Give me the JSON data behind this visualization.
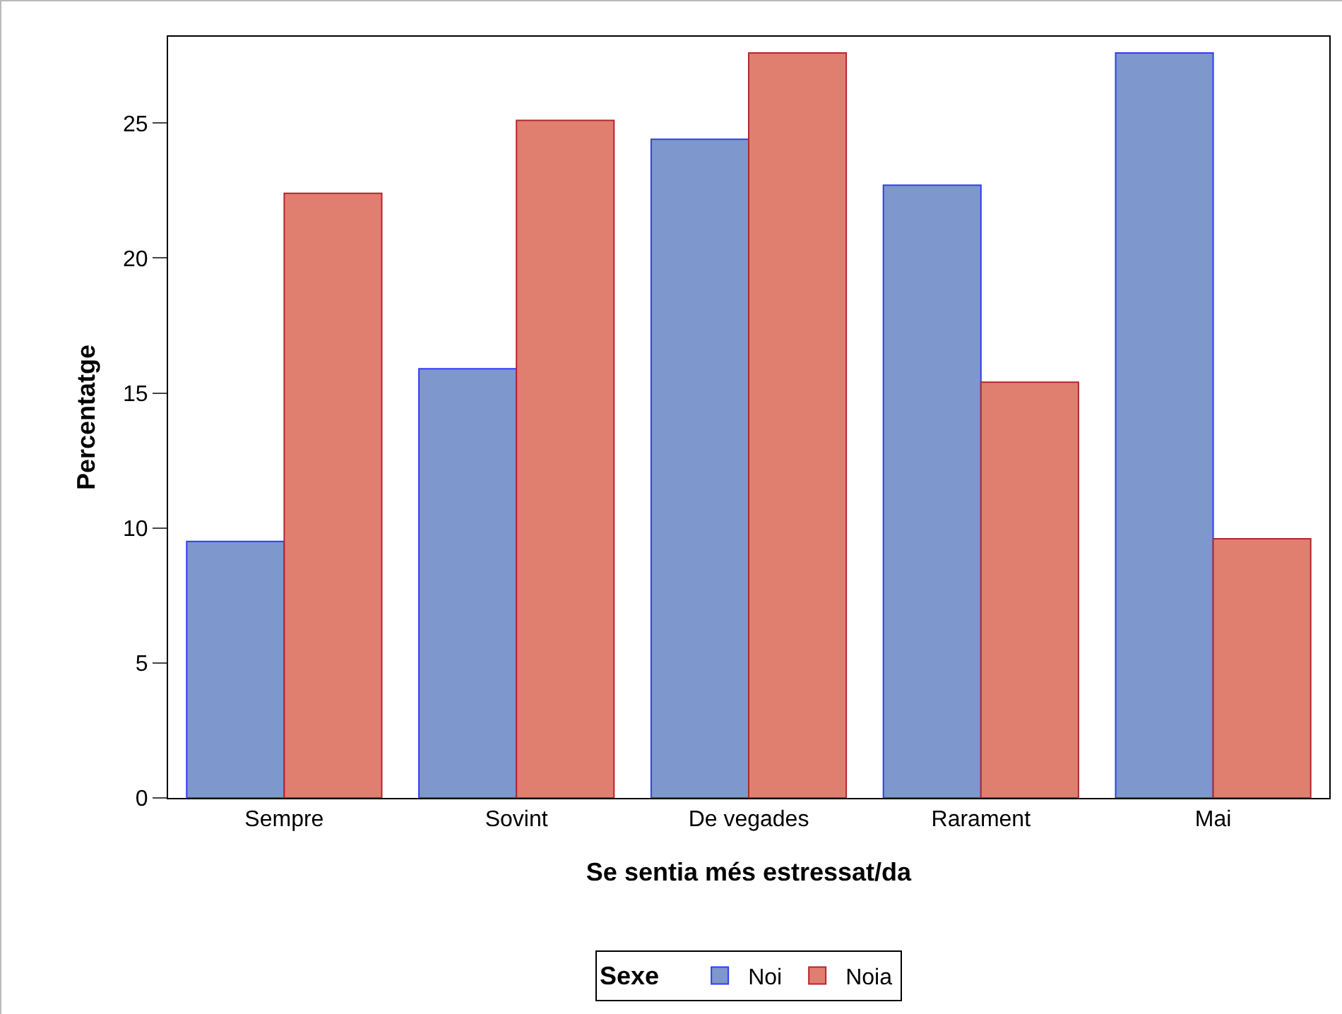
{
  "chart_data": {
    "type": "bar",
    "xlabel": "Se sentia més estressat/da",
    "ylabel": "Percentatge",
    "legend_title": "Sexe",
    "categories": [
      "Sempre",
      "Sovint",
      "De vegades",
      "Rarament",
      "Mai"
    ],
    "series": [
      {
        "name": "Noi",
        "color": "#7e97cc",
        "values": [
          9.5,
          15.9,
          24.4,
          22.7,
          27.6
        ]
      },
      {
        "name": "Noia",
        "color": "#e07f70",
        "values": [
          22.4,
          25.1,
          27.6,
          15.4,
          9.6
        ]
      }
    ],
    "ylim": [
      0,
      28.2
    ],
    "yticks": [
      0,
      5,
      10,
      15,
      20,
      25
    ],
    "grid": false,
    "legend": "bottom"
  }
}
